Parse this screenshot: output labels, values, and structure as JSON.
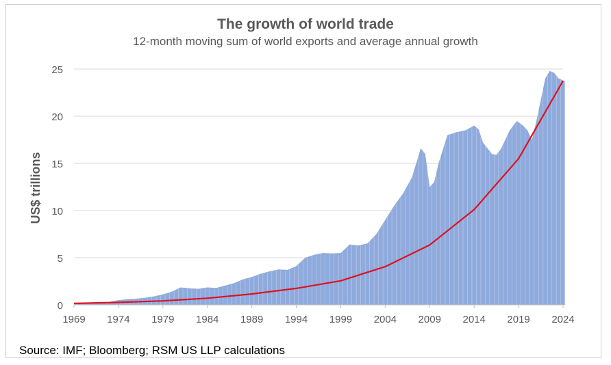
{
  "chart_data": {
    "type": "area",
    "title": "The growth of world trade",
    "subtitle": "12-month moving sum of world exports and average annual growth",
    "ylabel": "US$ trillions",
    "xlabel": "",
    "ylim": [
      0,
      25
    ],
    "xlim": [
      1969,
      2024.2
    ],
    "grid": true,
    "y_ticks": [
      "0",
      "5",
      "10",
      "15",
      "20",
      "25"
    ],
    "x_ticks": [
      "1969",
      "1974",
      "1979",
      "1984",
      "1989",
      "1994",
      "1999",
      "2004",
      "2009",
      "2014",
      "2019",
      "2024"
    ],
    "series": [
      {
        "type": "area",
        "color": "#8faadc",
        "x": [
          1969,
          1970,
          1971,
          1972,
          1973,
          1974,
          1975,
          1976,
          1977,
          1978,
          1979,
          1980,
          1981,
          1982,
          1983,
          1984,
          1985,
          1986,
          1987,
          1988,
          1989,
          1990,
          1991,
          1992,
          1993,
          1994,
          1995,
          1996,
          1997,
          1998,
          1999,
          2000,
          2001,
          2002,
          2003,
          2004,
          2005,
          2006,
          2007,
          2008,
          2008.5,
          2009,
          2009.5,
          2010,
          2011,
          2012,
          2013,
          2014,
          2014.5,
          2015,
          2016,
          2016.5,
          2017,
          2018,
          2018.8,
          2019.5,
          2020,
          2020.5,
          2021,
          2022,
          2022.5,
          2023,
          2023.5,
          2024,
          2024.2
        ],
        "values": [
          0.15,
          0.17,
          0.2,
          0.25,
          0.32,
          0.5,
          0.6,
          0.65,
          0.75,
          0.9,
          1.1,
          1.4,
          1.85,
          1.75,
          1.7,
          1.85,
          1.8,
          2.05,
          2.3,
          2.7,
          2.95,
          3.3,
          3.55,
          3.75,
          3.7,
          4.1,
          5.0,
          5.3,
          5.5,
          5.45,
          5.5,
          6.4,
          6.3,
          6.5,
          7.5,
          9.0,
          10.5,
          11.8,
          13.5,
          16.6,
          16.0,
          12.5,
          13.0,
          15.0,
          18.0,
          18.3,
          18.5,
          19.0,
          18.6,
          17.2,
          16.0,
          15.9,
          16.5,
          18.5,
          19.5,
          19.0,
          18.5,
          17.5,
          19.5,
          24.0,
          24.8,
          24.6,
          24.0,
          23.8,
          23.7
        ]
      },
      {
        "type": "line",
        "color": "#e0101e",
        "x": [
          1969,
          1974,
          1979,
          1984,
          1989,
          1994,
          1999,
          2004,
          2009,
          2014,
          2019,
          2024
        ],
        "values": [
          0.15,
          0.26,
          0.42,
          0.7,
          1.15,
          1.75,
          2.55,
          4.05,
          6.35,
          10.1,
          15.5,
          23.75
        ]
      }
    ]
  },
  "source": "Source: IMF; Bloomberg; RSM US LLP calculations"
}
